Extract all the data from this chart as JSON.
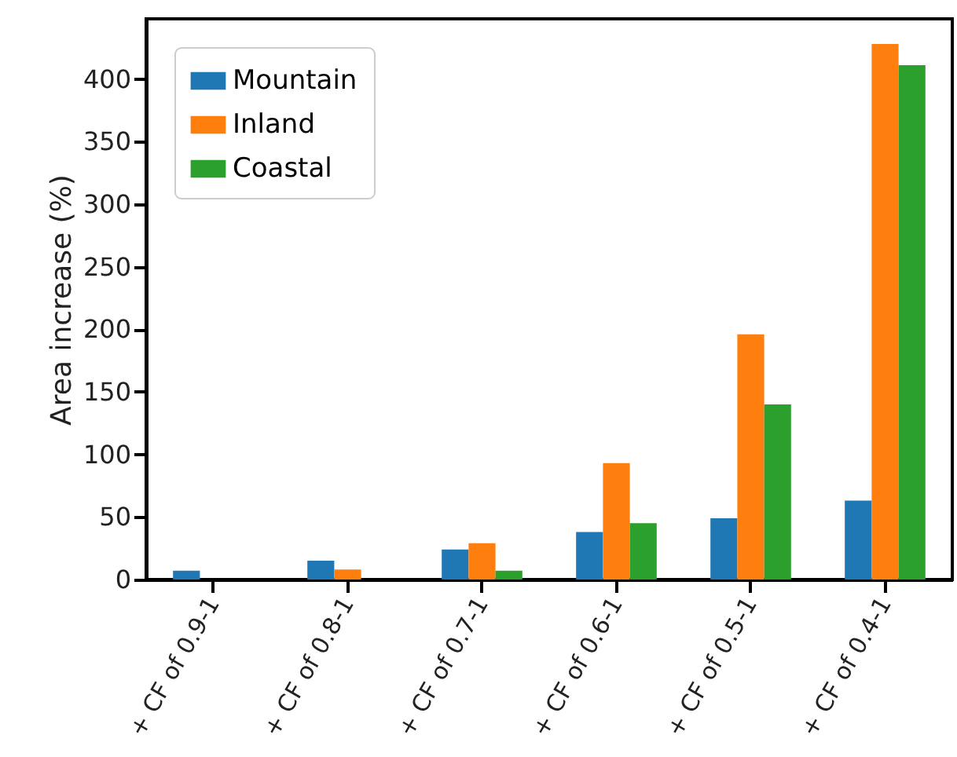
{
  "chart_data": {
    "type": "bar",
    "ylabel": "Area increase (%)",
    "categories": [
      "+ CF of 0.9-1",
      "+ CF of 0.8-1",
      "+ CF of 0.7-1",
      "+ CF of 0.6-1",
      "+ CF of 0.5-1",
      "+ CF of 0.4-1"
    ],
    "series": [
      {
        "name": "Mountain",
        "color": "#1f77b4",
        "values": [
          7,
          15,
          24,
          38,
          49,
          63
        ]
      },
      {
        "name": "Inland",
        "color": "#ff7f0e",
        "values": [
          0,
          8,
          29,
          93,
          196,
          428
        ]
      },
      {
        "name": "Coastal",
        "color": "#2ca02c",
        "values": [
          0,
          0,
          7,
          45,
          140,
          411
        ]
      }
    ],
    "ylim": [
      0,
      448
    ],
    "yticks": [
      0,
      50,
      100,
      150,
      200,
      250,
      300,
      350,
      400
    ],
    "grid": false,
    "legend": "top left"
  }
}
